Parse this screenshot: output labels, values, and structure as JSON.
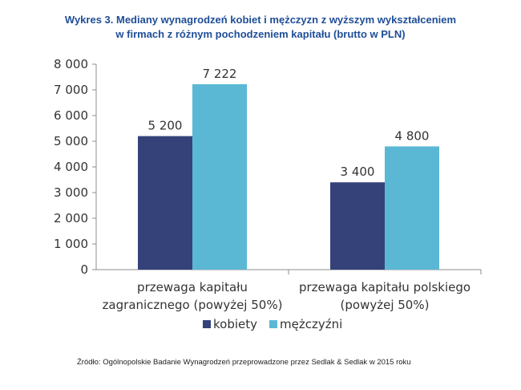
{
  "title_line1": "Wykres 3. Mediany wynagrodzeń kobiet i mężczyzn z wyższym wykształceniem",
  "title_line2": "w firmach z różnym pochodzeniem kapitału (brutto w PLN)",
  "source": "Źródło: Ogólnopolskie Badanie Wynagrodzeń przeprowadzone przez Sedlak & Sedlak w 2015 roku",
  "chart_data": {
    "type": "bar",
    "title": "Wykres 3. Mediany wynagrodzeń kobiet i mężczyzn z wyższym wykształceniem w firmach z różnym pochodzeniem kapitału (brutto w PLN)",
    "categories": [
      [
        "przewaga kapitału",
        "zagranicznego (powyżej 50%)"
      ],
      [
        "przewaga kapitału polskiego",
        "(powyżej 50%)"
      ]
    ],
    "series": [
      {
        "name": "kobiety",
        "color": "#35427a",
        "values": [
          5200,
          3400
        ],
        "labels": [
          "5 200",
          "3 400"
        ]
      },
      {
        "name": "mężczyźni",
        "color": "#5bb8d4",
        "values": [
          7222,
          4800
        ],
        "labels": [
          "7 222",
          "4 800"
        ]
      }
    ],
    "ylim": [
      0,
      8000
    ],
    "yticks": [
      0,
      1000,
      2000,
      3000,
      4000,
      5000,
      6000,
      7000,
      8000
    ],
    "ytick_labels": [
      "0",
      "1 000",
      "2 000",
      "3 000",
      "4 000",
      "5 000",
      "6 000",
      "7 000",
      "8 000"
    ],
    "grid": false,
    "legend_position": "bottom"
  }
}
